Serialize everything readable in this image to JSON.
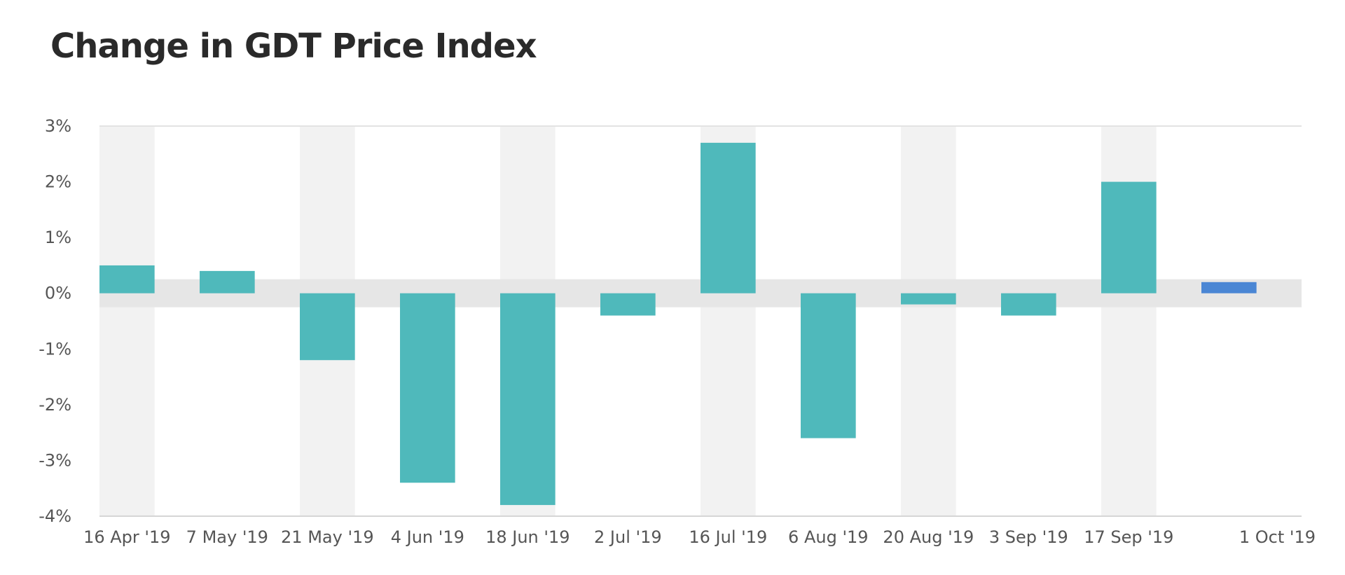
{
  "chart_data": {
    "type": "bar",
    "title": "Change in GDT Price Index",
    "categories": [
      "16 Apr '19",
      "7 May '19",
      "21 May '19",
      "4 Jun '19",
      "18 Jun '19",
      "2 Jul '19",
      "16 Jul '19",
      "6 Aug '19",
      "20 Aug '19",
      "3 Sep '19",
      "17 Sep '19",
      "1 Oct '19"
    ],
    "values": [
      0.5,
      0.4,
      -1.2,
      -3.4,
      -3.8,
      -0.4,
      2.7,
      -2.6,
      -0.2,
      -0.4,
      2.0,
      0.2
    ],
    "bar_colors": [
      "#4fb9bb",
      "#4fb9bb",
      "#4fb9bb",
      "#4fb9bb",
      "#4fb9bb",
      "#4fb9bb",
      "#4fb9bb",
      "#4fb9bb",
      "#4fb9bb",
      "#4fb9bb",
      "#4fb9bb",
      "#4a86d4"
    ],
    "yticks": [
      "3%",
      "2%",
      "1%",
      "0%",
      "-1%",
      "-2%",
      "-3%",
      "-4%"
    ],
    "ylim": [
      -4,
      3
    ],
    "xlabel": "",
    "ylabel": "",
    "grid": false,
    "legend": "none",
    "colors": {
      "bar": "#4fb9bb",
      "highlight_bar": "#4a86d4",
      "band": "#f2f2f2",
      "zero_band": "#e6e6e6"
    }
  }
}
